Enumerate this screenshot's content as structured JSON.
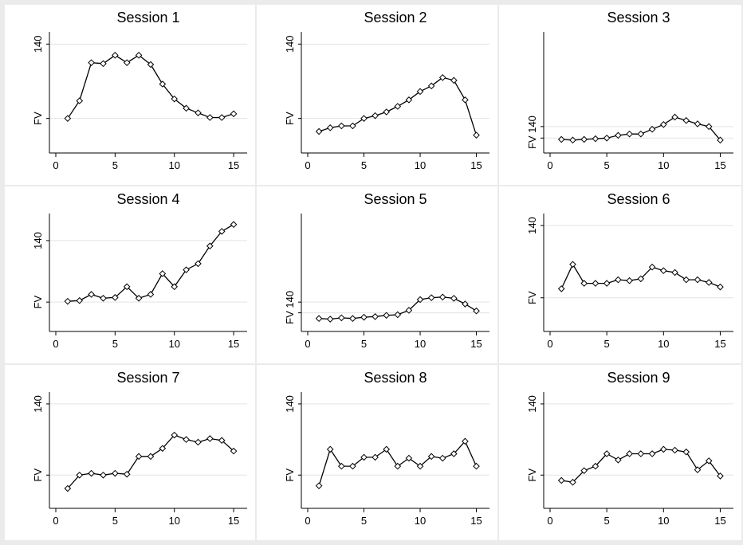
{
  "chart_data": [
    {
      "type": "line",
      "title": "Session 1",
      "ylabel": "FV",
      "y_ticks": [
        {
          "label": "140"
        },
        {
          "label": "FV"
        }
      ],
      "x_ticks": [
        0,
        5,
        10,
        15
      ],
      "x": [
        1,
        2,
        3,
        4,
        5,
        6,
        7,
        8,
        9,
        10,
        11,
        12,
        13,
        14,
        15
      ],
      "values": [
        0,
        19,
        60,
        59,
        68,
        60,
        68,
        58,
        37,
        21,
        11,
        6,
        1,
        1,
        5
      ],
      "grid": true
    },
    {
      "type": "line",
      "title": "Session 2",
      "ylabel": "FV",
      "y_ticks": [
        {
          "label": "140"
        },
        {
          "label": "FV"
        }
      ],
      "x_ticks": [
        0,
        5,
        10,
        15
      ],
      "x": [
        1,
        2,
        3,
        4,
        5,
        6,
        7,
        8,
        9,
        10,
        11,
        12,
        13,
        14,
        15
      ],
      "values": [
        -14,
        -10,
        -8,
        -8,
        0,
        3,
        7,
        13,
        20,
        29,
        35,
        44,
        41,
        20,
        -18
      ],
      "grid": true
    },
    {
      "type": "line",
      "title": "Session 3",
      "ylabel": "FV 140",
      "y_ticks": [
        {
          "label": "140"
        }
      ],
      "x_ticks": [
        0,
        5,
        10,
        15
      ],
      "x": [
        1,
        2,
        3,
        4,
        5,
        6,
        7,
        8,
        9,
        10,
        11,
        12,
        13,
        14,
        15
      ],
      "values": [
        -64,
        -65,
        -64,
        -63,
        -62,
        -58,
        -56,
        -56,
        -49,
        -42,
        -31,
        -36,
        -41,
        -45,
        -65
      ],
      "grid": true
    },
    {
      "type": "line",
      "title": "Session 4",
      "ylabel": "FV",
      "y_ticks": [
        {
          "label": "140"
        },
        {
          "label": "FV"
        }
      ],
      "x_ticks": [
        0,
        5,
        10,
        15
      ],
      "x": [
        1,
        2,
        3,
        4,
        5,
        6,
        7,
        8,
        9,
        10,
        11,
        12,
        13,
        14,
        15
      ],
      "values": [
        1,
        2,
        10,
        5,
        6,
        20,
        5,
        10,
        37,
        20,
        42,
        50,
        73,
        92,
        101
      ],
      "grid": true
    },
    {
      "type": "line",
      "title": "Session 5",
      "ylabel": "FV 140",
      "y_ticks": [
        {
          "label": "140"
        }
      ],
      "x_ticks": [
        0,
        5,
        10,
        15
      ],
      "x": [
        1,
        2,
        3,
        4,
        5,
        6,
        7,
        8,
        9,
        10,
        11,
        12,
        13,
        14,
        15
      ],
      "values": [
        -71,
        -72,
        -70,
        -71,
        -69,
        -68,
        -66,
        -65,
        -58,
        -41,
        -38,
        -37,
        -39,
        -48,
        -59
      ],
      "grid": true
    },
    {
      "type": "line",
      "title": "Session 6",
      "ylabel": "FV",
      "y_ticks": [
        {
          "label": "140"
        },
        {
          "label": "FV"
        }
      ],
      "x_ticks": [
        0,
        5,
        10,
        15
      ],
      "x": [
        1,
        2,
        3,
        4,
        5,
        6,
        7,
        8,
        9,
        10,
        11,
        12,
        13,
        14,
        15
      ],
      "values": [
        10,
        37,
        16,
        16,
        16,
        20,
        19,
        21,
        34,
        30,
        28,
        20,
        20,
        17,
        12
      ],
      "grid": true
    },
    {
      "type": "line",
      "title": "Session 7",
      "ylabel": "FV",
      "y_ticks": [
        {
          "label": "140"
        },
        {
          "label": "FV"
        }
      ],
      "x_ticks": [
        0,
        5,
        10,
        15
      ],
      "x": [
        1,
        2,
        3,
        4,
        5,
        6,
        7,
        8,
        9,
        10,
        11,
        12,
        13,
        14,
        15
      ],
      "values": [
        -15,
        0,
        2,
        0,
        2,
        1,
        21,
        21,
        30,
        45,
        40,
        37,
        41,
        39,
        27
      ],
      "grid": true
    },
    {
      "type": "line",
      "title": "Session 8",
      "ylabel": "FV",
      "y_ticks": [
        {
          "label": "140"
        },
        {
          "label": "FV"
        }
      ],
      "x_ticks": [
        0,
        5,
        10,
        15
      ],
      "x": [
        1,
        2,
        3,
        4,
        5,
        6,
        7,
        8,
        9,
        10,
        11,
        12,
        13,
        14,
        15
      ],
      "values": [
        -12,
        29,
        10,
        10,
        20,
        20,
        29,
        10,
        19,
        10,
        21,
        19,
        24,
        38,
        10
      ],
      "grid": true
    },
    {
      "type": "line",
      "title": "Session 9",
      "ylabel": "FV",
      "y_ticks": [
        {
          "label": "140"
        },
        {
          "label": "FV"
        }
      ],
      "x_ticks": [
        0,
        5,
        10,
        15
      ],
      "x": [
        1,
        2,
        3,
        4,
        5,
        6,
        7,
        8,
        9,
        10,
        11,
        12,
        13,
        14,
        15
      ],
      "values": [
        -6,
        -8,
        5,
        10,
        24,
        17,
        24,
        24,
        24,
        29,
        28,
        26,
        6,
        16,
        -1
      ],
      "grid": true
    }
  ]
}
